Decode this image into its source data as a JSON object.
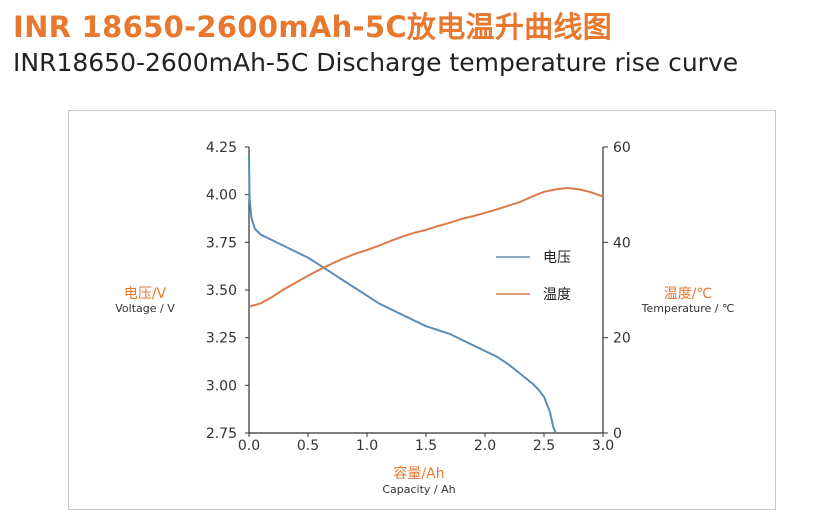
{
  "title_cn": "INR 18650-2600mAh-5C放电温升曲线图",
  "title_en": "INR18650-2600mAh-5C Discharge temperature rise curve",
  "chart_data": {
    "type": "line",
    "x_axis": {
      "label_cn": "容量/Ah",
      "label_en": "Capacity / Ah",
      "range": [
        0,
        3.0
      ],
      "ticks": [
        "0.0",
        "0.5",
        "1.0",
        "1.5",
        "2.0",
        "2.5",
        "3.0"
      ]
    },
    "y_left": {
      "label_cn": "电压/V",
      "label_en": "Voltage / V",
      "range": [
        2.75,
        4.25
      ],
      "ticks": [
        "4.25",
        "4.00",
        "3.75",
        "3.50",
        "3.25",
        "3.00",
        "2.75"
      ]
    },
    "y_right": {
      "label_cn": "温度/℃",
      "label_en": "Temperature / ℃",
      "range": [
        0,
        60
      ],
      "ticks": [
        "60",
        "40",
        "20",
        "0"
      ]
    },
    "legend_position": "right-middle",
    "grid": false,
    "series": [
      {
        "name": "电压",
        "axis": "left",
        "color": "#5b8db8",
        "points": [
          [
            0,
            4.2
          ],
          [
            0.005,
            3.98
          ],
          [
            0.02,
            3.88
          ],
          [
            0.05,
            3.82
          ],
          [
            0.1,
            3.79
          ],
          [
            0.2,
            3.76
          ],
          [
            0.3,
            3.73
          ],
          [
            0.4,
            3.7
          ],
          [
            0.5,
            3.67
          ],
          [
            0.6,
            3.63
          ],
          [
            0.7,
            3.59
          ],
          [
            0.8,
            3.55
          ],
          [
            0.9,
            3.51
          ],
          [
            1.0,
            3.47
          ],
          [
            1.1,
            3.43
          ],
          [
            1.2,
            3.4
          ],
          [
            1.3,
            3.37
          ],
          [
            1.4,
            3.34
          ],
          [
            1.5,
            3.31
          ],
          [
            1.6,
            3.29
          ],
          [
            1.7,
            3.27
          ],
          [
            1.8,
            3.24
          ],
          [
            1.9,
            3.21
          ],
          [
            2.0,
            3.18
          ],
          [
            2.1,
            3.15
          ],
          [
            2.2,
            3.11
          ],
          [
            2.3,
            3.06
          ],
          [
            2.4,
            3.01
          ],
          [
            2.45,
            2.98
          ],
          [
            2.5,
            2.94
          ],
          [
            2.55,
            2.86
          ],
          [
            2.58,
            2.78
          ],
          [
            2.6,
            2.75
          ]
        ]
      },
      {
        "name": "温度",
        "axis": "right",
        "color": "#d97b4a",
        "points": [
          [
            0,
            26.5
          ],
          [
            0.1,
            27.2
          ],
          [
            0.2,
            28.6
          ],
          [
            0.3,
            30.2
          ],
          [
            0.4,
            31.6
          ],
          [
            0.5,
            33.0
          ],
          [
            0.6,
            34.3
          ],
          [
            0.7,
            35.5
          ],
          [
            0.8,
            36.6
          ],
          [
            0.9,
            37.6
          ],
          [
            1.0,
            38.4
          ],
          [
            1.1,
            39.3
          ],
          [
            1.2,
            40.3
          ],
          [
            1.3,
            41.2
          ],
          [
            1.4,
            42.0
          ],
          [
            1.5,
            42.6
          ],
          [
            1.6,
            43.4
          ],
          [
            1.7,
            44.1
          ],
          [
            1.8,
            44.9
          ],
          [
            1.9,
            45.5
          ],
          [
            2.0,
            46.2
          ],
          [
            2.1,
            46.9
          ],
          [
            2.2,
            47.7
          ],
          [
            2.3,
            48.5
          ],
          [
            2.4,
            49.6
          ],
          [
            2.5,
            50.6
          ],
          [
            2.6,
            51.1
          ],
          [
            2.7,
            51.4
          ],
          [
            2.8,
            51.1
          ],
          [
            2.9,
            50.5
          ],
          [
            3.0,
            49.6
          ]
        ]
      }
    ]
  }
}
